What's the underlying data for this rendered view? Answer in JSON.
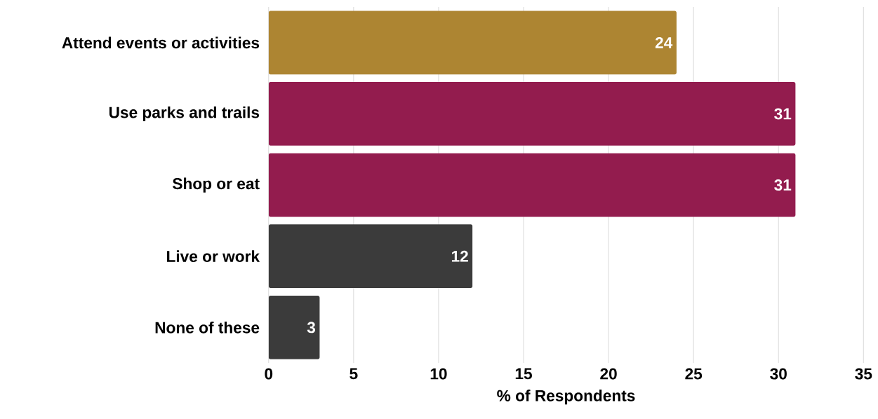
{
  "chart_data": {
    "type": "bar",
    "orientation": "horizontal",
    "xlabel": "% of Respondents",
    "categories": [
      "Attend events or activities",
      "Use parks and trails",
      "Shop or eat",
      "Live or work",
      "None of these"
    ],
    "values": [
      24,
      31,
      31,
      12,
      3
    ],
    "colors": [
      "#ad8532",
      "#931c4e",
      "#931c4e",
      "#3b3b3b",
      "#3b3b3b"
    ],
    "xlim": [
      0,
      35
    ],
    "xticks": [
      0,
      5,
      10,
      15,
      20,
      25,
      30,
      35
    ],
    "grid": "x",
    "data_labels": true
  }
}
